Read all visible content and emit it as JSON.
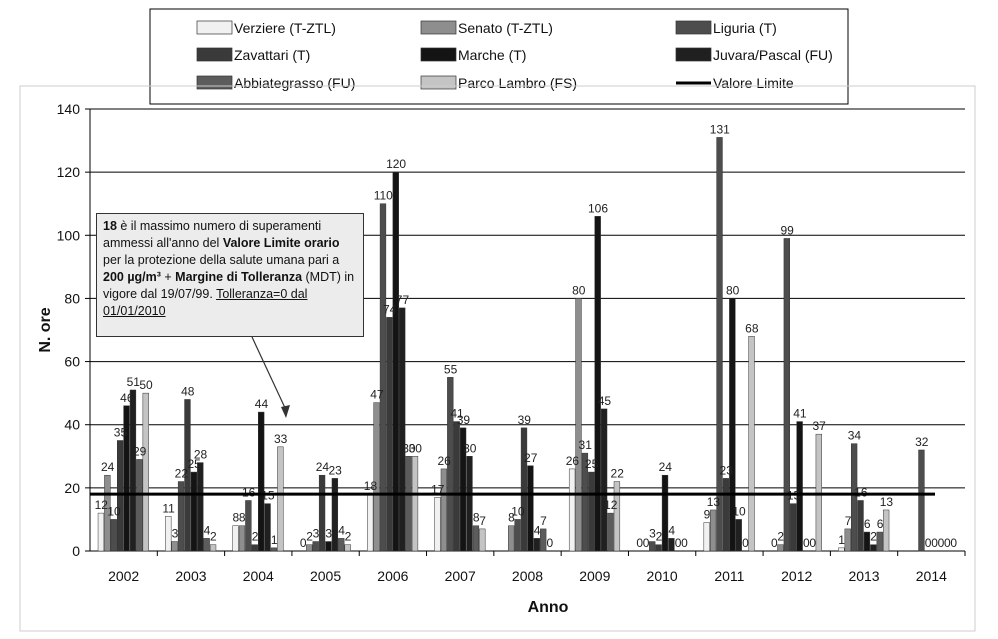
{
  "colors": {
    "Verziere (T-ZTL)": "#f1f1f1",
    "Senato (T-ZTL)": "#8e8e8e",
    "Liguria (T)": "#4d4d4d",
    "Zavattari (T)": "#3a3a3a",
    "Marche (T)": "#141414",
    "Juvara/Pascal (FU)": "#202020",
    "Abbiategrasso (FU)": "#5c5c5c",
    "Parco Lambro (FS)": "#c4c4c4",
    "Valore Limite": "#000000"
  },
  "note": {
    "num": "18",
    "t1": " è il massimo numero di superamenti ammessi all'anno del ",
    "vl": "Valore Limite orario",
    "t2": " per la protezione della salute umana pari a ",
    "conc": "200 µg/m³",
    "t3": " + ",
    "mdt": "Margine di Tolleranza",
    "t4": " (MDT) in vigore dal 19/07/99. ",
    "tol": "Tolleranza=0 dal 01/01/2010"
  },
  "chart_data": {
    "type": "bar",
    "title": "",
    "xlabel": "Anno",
    "ylabel": "N. ore",
    "ylim": [
      0,
      140
    ],
    "yticks": [
      0,
      20,
      40,
      60,
      80,
      100,
      120,
      140
    ],
    "grid": true,
    "legend_position": "top",
    "categories": [
      "2002",
      "2003",
      "2004",
      "2005",
      "2006",
      "2007",
      "2008",
      "2009",
      "2010",
      "2011",
      "2012",
      "2013",
      "2014"
    ],
    "series": [
      {
        "name": "Verziere (T-ZTL)",
        "values": [
          12,
          11,
          8,
          0,
          18,
          17,
          null,
          26,
          0,
          9,
          0,
          1,
          null
        ]
      },
      {
        "name": "Senato (T-ZTL)",
        "values": [
          24,
          3,
          8,
          2,
          47,
          26,
          8,
          80,
          0,
          13,
          2,
          7,
          null
        ]
      },
      {
        "name": "Liguria (T)",
        "values": [
          10,
          22,
          16,
          3,
          110,
          55,
          10,
          31,
          3,
          131,
          99,
          34,
          32
        ]
      },
      {
        "name": "Zavattari (T)",
        "values": [
          35,
          48,
          2,
          24,
          74,
          41,
          39,
          25,
          2,
          23,
          15,
          16,
          0
        ]
      },
      {
        "name": "Marche (T)",
        "values": [
          46,
          25,
          44,
          3,
          120,
          39,
          27,
          106,
          24,
          80,
          41,
          6,
          0
        ]
      },
      {
        "name": "Juvara/Pascal (FU)",
        "values": [
          51,
          28,
          15,
          23,
          77,
          30,
          4,
          45,
          4,
          10,
          0,
          2,
          0
        ]
      },
      {
        "name": "Abbiategrasso (FU)",
        "values": [
          29,
          4,
          1,
          4,
          30,
          8,
          7,
          12,
          0,
          0,
          0,
          6,
          0
        ]
      },
      {
        "name": "Parco Lambro (FS)",
        "values": [
          50,
          2,
          33,
          2,
          30,
          7,
          0,
          22,
          0,
          68,
          37,
          13,
          0
        ]
      }
    ],
    "value_labels": [
      [
        "12",
        "24",
        "10",
        "35",
        "46",
        "51",
        "29",
        "50"
      ],
      [
        "11",
        "3",
        "22",
        "48",
        "25",
        "28",
        "4",
        "2"
      ],
      [
        "8",
        "8",
        "16",
        "2",
        "44",
        "15",
        "1",
        "33"
      ],
      [
        "0",
        "2",
        "3",
        "24",
        "3",
        "23",
        "4",
        "2"
      ],
      [
        "18",
        "47",
        "110",
        "74",
        "120",
        "77",
        "30",
        "30"
      ],
      [
        "17",
        "26",
        "55",
        "41",
        "39",
        "30",
        "8",
        "7"
      ],
      [
        "",
        "8",
        "10",
        "39",
        "27",
        "4",
        "7",
        "0"
      ],
      [
        "26",
        "80",
        "31",
        "25",
        "106",
        "45",
        "12",
        "22"
      ],
      [
        "0",
        "0",
        "3",
        "2",
        "24",
        "4",
        "0",
        "0"
      ],
      [
        "9",
        "13",
        "131",
        "23",
        "80",
        "10",
        "0",
        "68"
      ],
      [
        "0",
        "2",
        "99",
        "15",
        "41",
        "0",
        "0",
        "37"
      ],
      [
        "1",
        "7",
        "34",
        "16",
        "6",
        "2",
        "6",
        "13"
      ],
      [
        "",
        "",
        "32",
        "0",
        "0",
        "0",
        "0",
        "0"
      ]
    ],
    "limit_line": {
      "name": "Valore Limite",
      "value": 18
    }
  }
}
